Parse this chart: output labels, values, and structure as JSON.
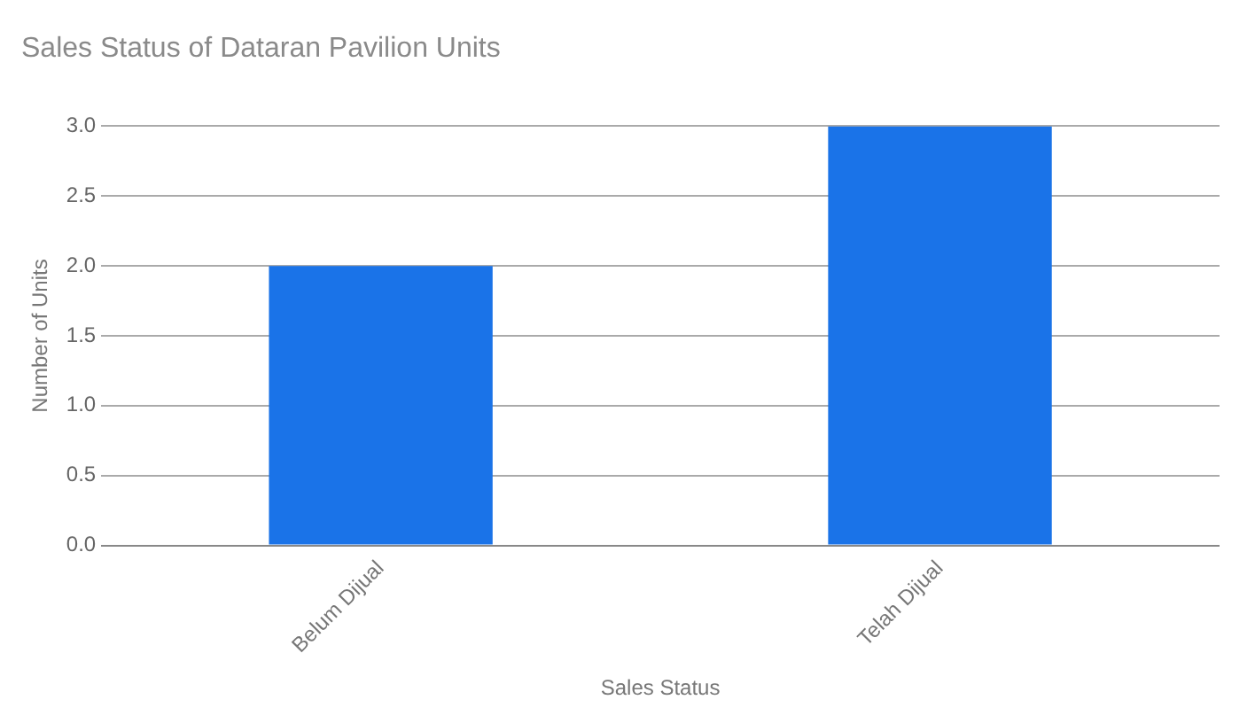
{
  "chart_data": {
    "type": "bar",
    "title": "Sales Status of Dataran Pavilion Units",
    "xlabel": "Sales Status",
    "ylabel": "Number of Units",
    "categories": [
      "Belum Dijual",
      "Telah Dijual"
    ],
    "values": [
      2,
      3
    ],
    "color": "#1a73e8",
    "ylim": [
      0,
      3
    ],
    "yticks": [
      {
        "value": 0,
        "label": "0.0"
      },
      {
        "value": 0.5,
        "label": "0.5"
      },
      {
        "value": 1,
        "label": "1.0"
      },
      {
        "value": 1.5,
        "label": "1.5"
      },
      {
        "value": 2,
        "label": "2.0"
      },
      {
        "value": 2.5,
        "label": "2.5"
      },
      {
        "value": 3,
        "label": "3.0"
      }
    ],
    "grid": "y",
    "legend": false
  }
}
